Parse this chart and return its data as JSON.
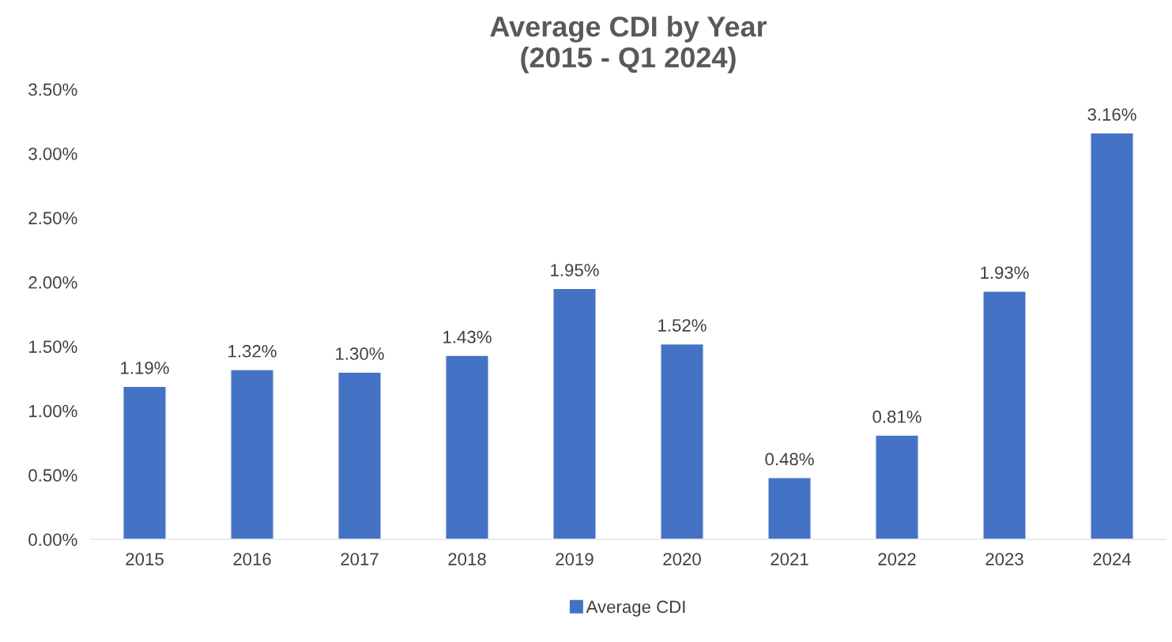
{
  "chart_data": {
    "type": "bar",
    "title": "Average CDI by Year\n(2015 - Q1 2024)",
    "categories": [
      "2015",
      "2016",
      "2017",
      "2018",
      "2019",
      "2020",
      "2021",
      "2022",
      "2023",
      "2024"
    ],
    "series": [
      {
        "name": "Average CDI",
        "color": "#4472c4",
        "values": [
          1.19,
          1.32,
          1.3,
          1.43,
          1.95,
          1.52,
          0.48,
          0.81,
          1.93,
          3.16
        ],
        "value_labels": [
          "1.19%",
          "1.32%",
          "1.30%",
          "1.43%",
          "1.95%",
          "1.52%",
          "0.48%",
          "0.81%",
          "1.93%",
          "3.16%"
        ]
      }
    ],
    "ylim": [
      0,
      3.5
    ],
    "yticks": [
      {
        "value": 0,
        "label": "0.00%"
      },
      {
        "value": 0.5,
        "label": "0.50%"
      },
      {
        "value": 1,
        "label": "1.00%"
      },
      {
        "value": 1.5,
        "label": "1.50%"
      },
      {
        "value": 2,
        "label": "2.00%"
      },
      {
        "value": 2.5,
        "label": "2.50%"
      },
      {
        "value": 3,
        "label": "3.00%"
      },
      {
        "value": 3.5,
        "label": "3.50%"
      }
    ],
    "grid": false,
    "legend": "bottom"
  }
}
